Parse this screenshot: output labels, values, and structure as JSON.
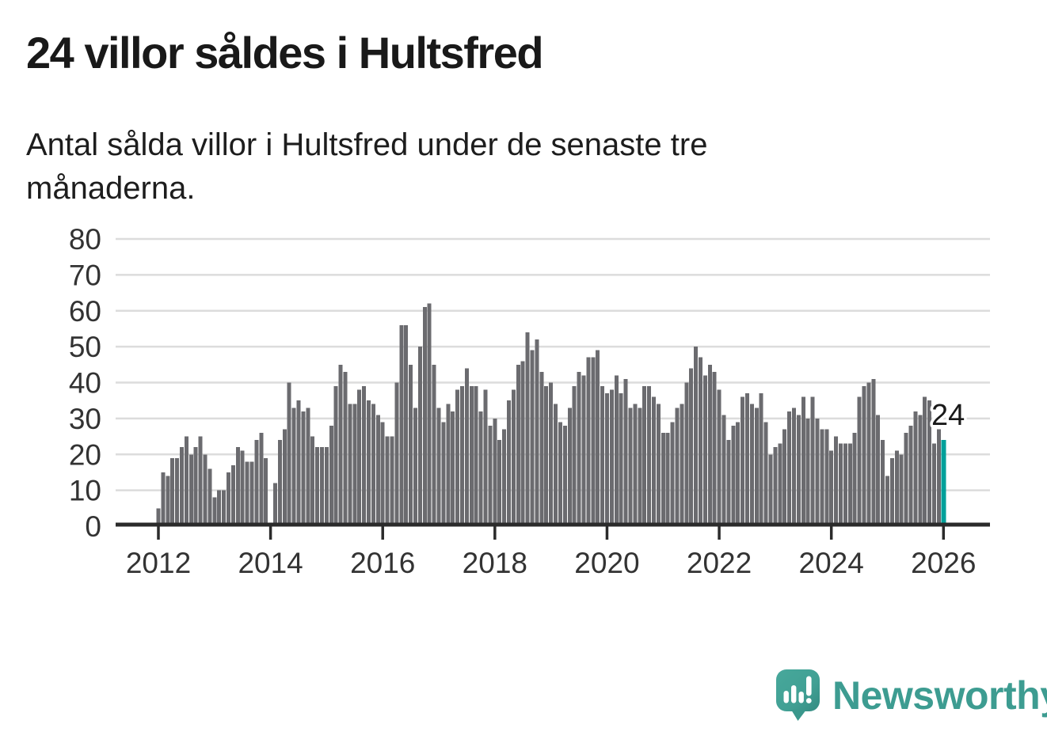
{
  "header": {
    "title": "24 villor såldes i Hultsfred",
    "subtitle_line1": "Antal sålda villor i Hultsfred under de senaste tre",
    "subtitle_line2": "månaderna."
  },
  "branding": {
    "logo_text": "Newsworthy",
    "logo_color": "#3d9c91",
    "icon_color": "#41a094"
  },
  "chart_data": {
    "type": "bar",
    "title": "24 villor såldes i Hultsfred",
    "x_start_month": "2012-01",
    "x_end_month": "2026-01",
    "x_tick_labels": [
      "2012",
      "2014",
      "2016",
      "2018",
      "2020",
      "2022",
      "2024",
      "2026"
    ],
    "y_ticks": [
      0,
      10,
      20,
      30,
      40,
      50,
      60,
      70,
      80
    ],
    "ylim": [
      0,
      80
    ],
    "grid": true,
    "values": [
      5,
      15,
      14,
      19,
      19,
      22,
      25,
      20,
      22,
      25,
      20,
      16,
      8,
      10,
      10,
      15,
      17,
      22,
      21,
      18,
      18,
      24,
      26,
      19,
      0,
      12,
      24,
      27,
      40,
      33,
      35,
      32,
      33,
      25,
      22,
      22,
      22,
      28,
      39,
      45,
      43,
      34,
      34,
      38,
      39,
      35,
      34,
      31,
      29,
      25,
      25,
      40,
      56,
      56,
      45,
      33,
      50,
      61,
      62,
      45,
      33,
      29,
      34,
      32,
      38,
      39,
      44,
      39,
      39,
      32,
      38,
      28,
      30,
      24,
      27,
      35,
      38,
      45,
      46,
      54,
      49,
      52,
      43,
      39,
      40,
      34,
      29,
      28,
      33,
      39,
      43,
      42,
      47,
      47,
      49,
      39,
      37,
      38,
      42,
      37,
      41,
      33,
      34,
      33,
      39,
      39,
      36,
      34,
      26,
      26,
      29,
      33,
      34,
      40,
      44,
      50,
      47,
      42,
      45,
      43,
      38,
      31,
      24,
      28,
      29,
      36,
      37,
      34,
      33,
      37,
      29,
      20,
      22,
      23,
      27,
      32,
      33,
      31,
      36,
      30,
      36,
      30,
      27,
      27,
      21,
      25,
      23,
      23,
      23,
      26,
      36,
      39,
      40,
      41,
      31,
      24,
      14,
      19,
      21,
      20,
      26,
      28,
      32,
      31,
      36,
      35,
      23,
      27,
      24
    ],
    "highlight_last_bar": true,
    "annotation": {
      "text": "24"
    },
    "colors": {
      "bar": "#6b6b6f",
      "highlight": "#00a09a",
      "grid": "#dcdcdc",
      "axis": "#2b2b2b",
      "tick_label": "#333333",
      "annotation": "#1a1a1a"
    },
    "legend": null
  }
}
